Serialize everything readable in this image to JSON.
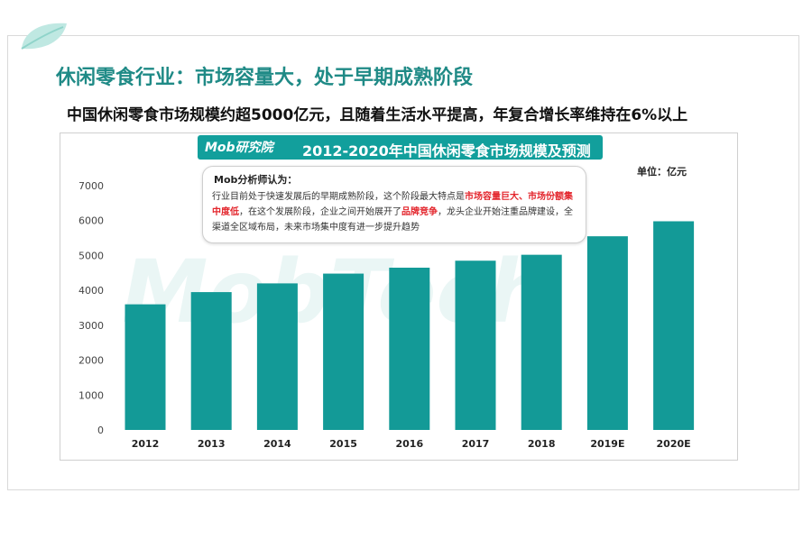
{
  "slide": {
    "title": "休闲零食行业：市场容量大，处于早期成熟阶段",
    "subtitle": "中国休闲零食市场规模约超5000亿元，且随着生活水平提高，年复合增长率维持在6%以上"
  },
  "banner": {
    "logo_text": "Mob研究院",
    "title": "2012-2020年中国休闲零食市场规模及预测"
  },
  "unit_label": "单位：亿元",
  "watermark": "MobTech",
  "note": {
    "heading": "Mob分析师认为：",
    "parts": [
      {
        "text": "行业目前处于快速发展后的早期成熟阶段，这个阶段最大特点是",
        "hl": false
      },
      {
        "text": "市场容量巨大、市场份额集中度低",
        "hl": true
      },
      {
        "text": "，在这个发展阶段，企业之间开始展开了",
        "hl": false
      },
      {
        "text": "品牌竞争",
        "hl": true
      },
      {
        "text": "，龙头企业开始注重品牌建设，全渠道全区域布局，未来市场集中度有进一步提升趋势",
        "hl": false
      }
    ]
  },
  "colors": {
    "bar": "#139a97",
    "title": "#1f8a86",
    "highlight": "#e3242b"
  },
  "chart_data": {
    "type": "bar",
    "title": "2012-2020年中国休闲零食市场规模及预测",
    "ylabel": "单位：亿元",
    "categories": [
      "2012",
      "2013",
      "2014",
      "2015",
      "2016",
      "2017",
      "2018",
      "2019E",
      "2020E"
    ],
    "values": [
      3600,
      3950,
      4200,
      4480,
      4650,
      4850,
      5020,
      5550,
      5980
    ],
    "yticks": [
      0,
      1000,
      2000,
      3000,
      4000,
      5000,
      6000,
      7000
    ],
    "ylim": [
      0,
      7000
    ],
    "grid": false
  }
}
